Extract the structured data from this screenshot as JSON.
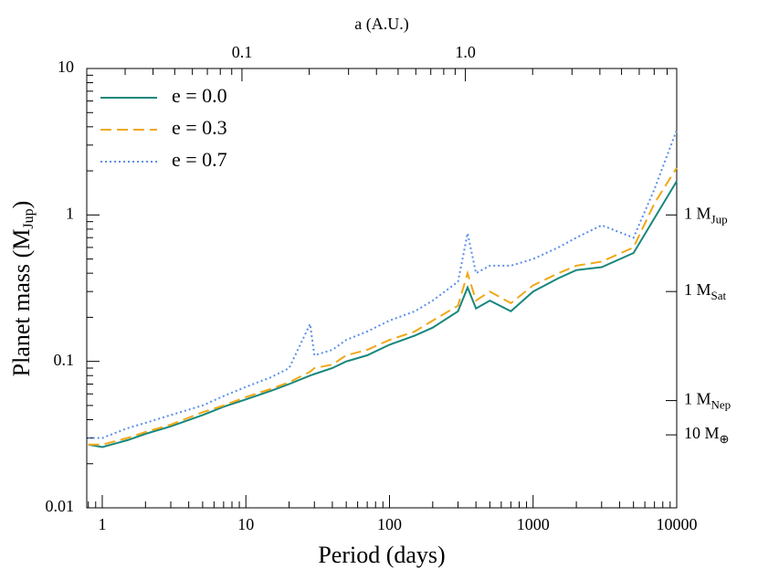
{
  "chart_data": {
    "type": "line",
    "x_label": "Period (days)",
    "y_label": "Planet mass (M",
    "y_label_sub": "Jup",
    "y_label_end": ")",
    "x2_label": "a (A.U.)",
    "log_x": true,
    "log_y": true,
    "legend": "upper left",
    "xlim": [
      0.78,
      10000
    ],
    "xticks": [
      1,
      10,
      100,
      1000,
      10000
    ],
    "ylim": [
      0.01,
      10
    ],
    "yticks": [
      0.01,
      0.1,
      1,
      10
    ],
    "x2lim": [
      0.0202,
      8.83
    ],
    "x2ticks": [
      0.1,
      {
        "value": 1,
        "label": "1.0"
      }
    ],
    "y2ticks": [
      {
        "value": 1,
        "label": "1 M",
        "sub": "Jup"
      },
      {
        "value": 0.3,
        "label": "1 M",
        "sub": "Sat"
      },
      {
        "value": 0.054,
        "label": "1 M",
        "sub": "Nep"
      },
      {
        "value": 0.0315,
        "label": "10 M",
        "sub": "⊕"
      }
    ],
    "x": [
      0.8,
      1,
      1.5,
      2,
      3,
      5,
      7,
      10,
      15,
      20,
      28,
      30,
      40,
      50,
      70,
      100,
      150,
      200,
      300,
      350,
      400,
      500,
      700,
      1000,
      1500,
      2000,
      3000,
      5000,
      7000,
      10000
    ],
    "series": [
      {
        "name": "e = 0.0",
        "color": "#17877d",
        "linestyle": "solid",
        "values": [
          0.027,
          0.026,
          0.029,
          0.032,
          0.036,
          0.043,
          0.049,
          0.055,
          0.063,
          0.07,
          0.08,
          0.082,
          0.09,
          0.1,
          0.11,
          0.13,
          0.15,
          0.17,
          0.22,
          0.32,
          0.23,
          0.26,
          0.22,
          0.3,
          0.37,
          0.42,
          0.44,
          0.55,
          0.95,
          1.7
        ]
      },
      {
        "name": "e = 0.3",
        "color": "#f0a818",
        "linestyle": "dashed",
        "values": [
          0.027,
          0.027,
          0.03,
          0.033,
          0.037,
          0.045,
          0.05,
          0.057,
          0.065,
          0.072,
          0.085,
          0.09,
          0.095,
          0.11,
          0.12,
          0.14,
          0.16,
          0.19,
          0.24,
          0.4,
          0.26,
          0.3,
          0.25,
          0.33,
          0.4,
          0.45,
          0.48,
          0.6,
          1.2,
          2.1
        ]
      },
      {
        "name": "e = 0.7",
        "color": "#5a8ee8",
        "linestyle": "dotted",
        "values": [
          0.03,
          0.03,
          0.035,
          0.038,
          0.043,
          0.05,
          0.058,
          0.067,
          0.078,
          0.09,
          0.18,
          0.11,
          0.12,
          0.14,
          0.16,
          0.19,
          0.22,
          0.26,
          0.35,
          0.75,
          0.4,
          0.45,
          0.45,
          0.5,
          0.6,
          0.7,
          0.85,
          0.7,
          1.5,
          3.8
        ]
      }
    ]
  }
}
